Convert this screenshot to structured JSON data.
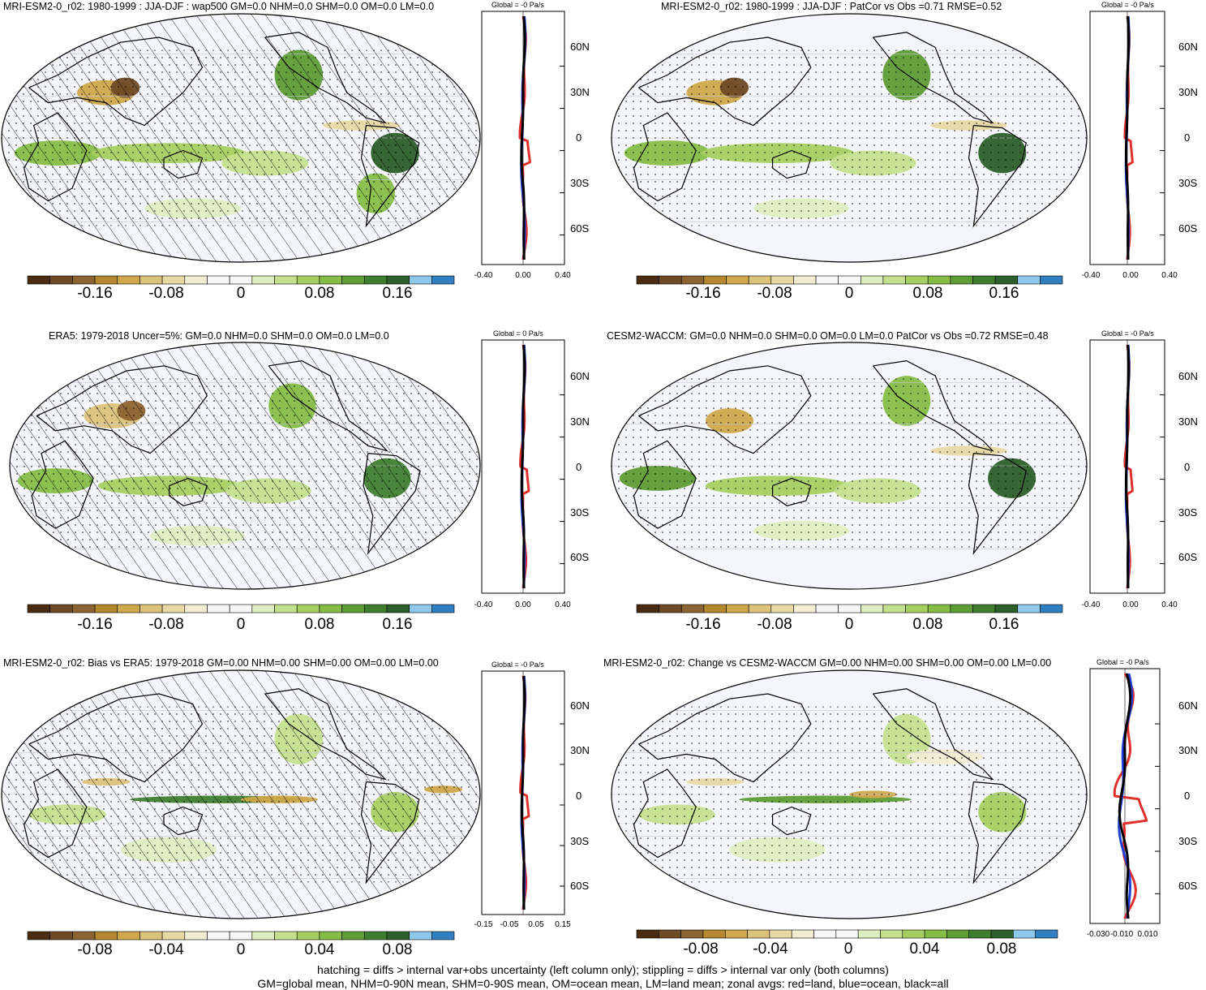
{
  "colors": {
    "land": "#e0302b",
    "ocean": "#1f3fd6",
    "all": "#000000",
    "palette": [
      "#4a2c12",
      "#6e4a25",
      "#8c6432",
      "#b4882e",
      "#cfa84b",
      "#dcc27a",
      "#e8d9a4",
      "#f2ecd2",
      "#f7f7f7",
      "#f7f7f7",
      "#dfeec1",
      "#c4e08e",
      "#a6cf63",
      "#86bd47",
      "#5e9c36",
      "#3f7e2f",
      "#2c5f2a",
      "#8ec8ea",
      "#2f7fc1"
    ]
  },
  "panels": [
    {
      "title": "MRI-ESM2-0_r02: 1980-1999 : JJA-DJF : wap500 GM=0.0 NHM=0.0 SHM=0.0 OM=0.0 LM=0.0",
      "zonal_title": "Global = -0 Pa/s",
      "lat_labels": [
        "60N",
        "30N",
        "0",
        "30S",
        "60S"
      ],
      "zonal_xticks": [
        "-0.40",
        "0.00",
        "0.40"
      ],
      "colorbar_labels": [
        "-0.16",
        "-0.08",
        "0",
        "0.08",
        "0.16"
      ]
    },
    {
      "title": "MRI-ESM2-0_r02: 1980-1999 : JJA-DJF : PatCor vs Obs =0.71 RMSE=0.52",
      "zonal_title": "Global = -0 Pa/s",
      "lat_labels": [
        "60N",
        "30N",
        "0",
        "30S",
        "60S"
      ],
      "zonal_xticks": [
        "-0.40",
        "0.00",
        "0.40"
      ],
      "colorbar_labels": [
        "-0.16",
        "-0.08",
        "0",
        "0.08",
        "0.16"
      ]
    },
    {
      "title": "ERA5: 1979-2018 Uncer=5%: GM=0.0 NHM=0.0 SHM=0.0 OM=0.0 LM=0.0",
      "zonal_title": "Global = 0 Pa/s",
      "lat_labels": [
        "60N",
        "30N",
        "0",
        "30S",
        "60S"
      ],
      "zonal_xticks": [
        "-0.40",
        "0.00",
        "0.40"
      ],
      "colorbar_labels": [
        "-0.16",
        "-0.08",
        "0",
        "0.08",
        "0.16"
      ]
    },
    {
      "title": "CESM2-WACCM: GM=0.0 NHM=0.0 SHM=0.0 OM=0.0 LM=0.0 PatCor vs Obs =0.72 RMSE=0.48",
      "zonal_title": "Global = -0 Pa/s",
      "lat_labels": [
        "60N",
        "30N",
        "0",
        "30S",
        "60S"
      ],
      "zonal_xticks": [
        "-0.40",
        "0.00",
        "0.40"
      ],
      "colorbar_labels": [
        "-0.16",
        "-0.08",
        "0",
        "0.08",
        "0.16"
      ]
    },
    {
      "title": "MRI-ESM2-0_r02: Bias vs ERA5: 1979-2018 GM=0.00 NHM=0.00 SHM=0.00 OM=0.00 LM=0.00",
      "zonal_title": "Global = -0 Pa/s",
      "lat_labels": [
        "60N",
        "30N",
        "0",
        "30S",
        "60S"
      ],
      "zonal_xticks": [
        "-0.15",
        "-0.05",
        "0.05",
        "0.15"
      ],
      "colorbar_labels": [
        "-0.08",
        "-0.04",
        "0",
        "0.04",
        "0.08"
      ]
    },
    {
      "title": "MRI-ESM2-0_r02: Change vs CESM2-WACCM GM=0.00 NHM=0.00 SHM=0.00 OM=0.00 LM=0.00",
      "zonal_title": "Global = -0 Pa/s",
      "lat_labels": [
        "60N",
        "30N",
        "0",
        "30S",
        "60S"
      ],
      "zonal_xticks": [
        "-0.030",
        "-0.010",
        "0.010"
      ],
      "colorbar_labels": [
        "-0.08",
        "-0.04",
        "0",
        "0.04",
        "0.08"
      ]
    }
  ],
  "footer": {
    "line1": "hatching = diffs > internal var+obs uncertainty (left column only); stippling = diffs > internal var only (both columns)",
    "line2": "GM=global mean, NHM=0-90N mean, SHM=0-90S mean, OM=ocean mean, LM=land mean; zonal avgs: red=land, blue=ocean, black=all"
  }
}
